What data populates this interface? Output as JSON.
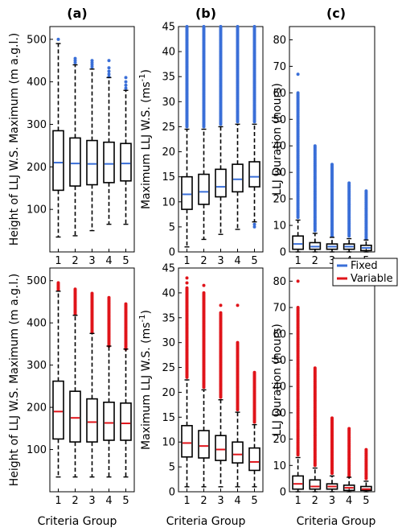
{
  "figure": {
    "xlabel": "Criteria Group",
    "panel_titles": [
      "(a)",
      "(b)",
      "(c)"
    ],
    "legend": [
      {
        "label": "Fixed",
        "color": "#3a6fd8"
      },
      {
        "label": "Variable",
        "color": "#e0141a"
      }
    ]
  },
  "colors": {
    "fixed": "#3a6fd8",
    "variable": "#e0141a",
    "box": "#000000"
  },
  "chart_data": [
    {
      "type": "boxplot",
      "panel": "a-top",
      "series": "Fixed",
      "ylabel": "Height of LLJ W.S. Maximum (m a.g.l.)",
      "xlabel": "",
      "categories": [
        "1",
        "2",
        "3",
        "4",
        "5"
      ],
      "ylim": [
        0,
        530
      ],
      "yticks": [
        100,
        200,
        300,
        400,
        500
      ],
      "boxes": [
        {
          "q1": 145,
          "median": 210,
          "q3": 285,
          "whislo": 35,
          "whishi": 490,
          "outliers": [
            500
          ]
        },
        {
          "q1": 155,
          "median": 208,
          "q3": 268,
          "whislo": 38,
          "whishi": 440,
          "outliers": [
            445,
            450,
            455
          ]
        },
        {
          "q1": 158,
          "median": 207,
          "q3": 262,
          "whislo": 50,
          "whishi": 430,
          "outliers": [
            435,
            440,
            445,
            450
          ]
        },
        {
          "q1": 163,
          "median": 207,
          "q3": 258,
          "whislo": 65,
          "whishi": 410,
          "outliers": [
            412,
            418,
            425,
            433,
            450
          ]
        },
        {
          "q1": 167,
          "median": 208,
          "q3": 255,
          "whislo": 65,
          "whishi": 380,
          "outliers": [
            385,
            392,
            400,
            410
          ]
        }
      ]
    },
    {
      "type": "boxplot",
      "panel": "b-top",
      "series": "Fixed",
      "ylabel": "Maximum LLJ W.S. (ms-1)",
      "xlabel": "",
      "categories": [
        "1",
        "2",
        "3",
        "4",
        "5"
      ],
      "ylim": [
        0,
        45
      ],
      "yticks": [
        0,
        5,
        10,
        15,
        20,
        25,
        30,
        35,
        40,
        45
      ],
      "boxes": [
        {
          "q1": 8.5,
          "median": 11.5,
          "q3": 15,
          "whislo": 1,
          "whishi": 24.5,
          "outlier_range": [
            25,
            45
          ]
        },
        {
          "q1": 9.5,
          "median": 12,
          "q3": 15.5,
          "whislo": 2.5,
          "whishi": 24.5,
          "outlier_range": [
            25,
            45
          ]
        },
        {
          "q1": 11,
          "median": 13,
          "q3": 16.5,
          "whislo": 3.5,
          "whishi": 25,
          "outlier_range": [
            25.5,
            45
          ]
        },
        {
          "q1": 12,
          "median": 14.5,
          "q3": 17.5,
          "whislo": 4.5,
          "whishi": 25.5,
          "outlier_range": [
            26,
            45
          ]
        },
        {
          "q1": 13,
          "median": 15,
          "q3": 18,
          "whislo": 6,
          "whishi": 25.5,
          "outlier_range": [
            26,
            45
          ],
          "low_outliers": [
            5.5,
            5
          ]
        }
      ]
    },
    {
      "type": "boxplot",
      "panel": "c-top",
      "series": "Fixed",
      "ylabel": "LLJ Duration (hours)",
      "xlabel": "",
      "categories": [
        "1",
        "2",
        "3",
        "4",
        "5"
      ],
      "ylim": [
        0,
        85
      ],
      "yticks": [
        0,
        10,
        20,
        30,
        40,
        50,
        60,
        70,
        80
      ],
      "boxes": [
        {
          "q1": 1,
          "median": 3,
          "q3": 6,
          "whislo": 0,
          "whishi": 12,
          "outlier_range": [
            13,
            60
          ],
          "extra_outliers": [
            67
          ]
        },
        {
          "q1": 1,
          "median": 2,
          "q3": 3.5,
          "whislo": 0,
          "whishi": 7,
          "outlier_range": [
            8,
            40
          ]
        },
        {
          "q1": 1,
          "median": 2,
          "q3": 3,
          "whislo": 0,
          "whishi": 5.5,
          "outlier_range": [
            6,
            33
          ]
        },
        {
          "q1": 1,
          "median": 2,
          "q3": 3,
          "whislo": 0,
          "whishi": 5,
          "outlier_range": [
            6,
            26
          ]
        },
        {
          "q1": 0.5,
          "median": 1.5,
          "q3": 2.5,
          "whislo": 0,
          "whishi": 4.5,
          "outlier_range": [
            5,
            23
          ]
        }
      ]
    },
    {
      "type": "boxplot",
      "panel": "a-bottom",
      "series": "Variable",
      "ylabel": "Height of LLJ W.S. Maximum (m a.g.l.)",
      "xlabel": "Criteria Group",
      "categories": [
        "1",
        "2",
        "3",
        "4",
        "5"
      ],
      "ylim": [
        0,
        530
      ],
      "yticks": [
        100,
        200,
        300,
        400,
        500
      ],
      "boxes": [
        {
          "q1": 125,
          "median": 190,
          "q3": 262,
          "whislo": 35,
          "whishi": 475,
          "outlier_range": [
            478,
            495
          ]
        },
        {
          "q1": 118,
          "median": 175,
          "q3": 238,
          "whislo": 35,
          "whishi": 418,
          "outlier_range": [
            420,
            480
          ]
        },
        {
          "q1": 118,
          "median": 165,
          "q3": 220,
          "whislo": 35,
          "whishi": 375,
          "outlier_range": [
            378,
            470
          ]
        },
        {
          "q1": 122,
          "median": 163,
          "q3": 212,
          "whislo": 35,
          "whishi": 345,
          "outlier_range": [
            345,
            460
          ]
        },
        {
          "q1": 122,
          "median": 162,
          "q3": 210,
          "whislo": 35,
          "whishi": 338,
          "outlier_range": [
            338,
            445
          ]
        }
      ]
    },
    {
      "type": "boxplot",
      "panel": "b-bottom",
      "series": "Variable",
      "ylabel": "Maximum LLJ W.S. (ms-1)",
      "xlabel": "Criteria Group",
      "categories": [
        "1",
        "2",
        "3",
        "4",
        "5"
      ],
      "ylim": [
        0,
        45
      ],
      "yticks": [
        0,
        5,
        10,
        15,
        20,
        25,
        30,
        35,
        40,
        45
      ],
      "boxes": [
        {
          "q1": 7,
          "median": 9.8,
          "q3": 13.3,
          "whislo": 1,
          "whishi": 22.5,
          "outlier_range": [
            23,
            41
          ],
          "extra_outliers": [
            42,
            43
          ]
        },
        {
          "q1": 6.8,
          "median": 9.2,
          "q3": 12.3,
          "whislo": 1,
          "whishi": 20.5,
          "outlier_range": [
            21,
            40
          ],
          "extra_outliers": [
            41.5
          ]
        },
        {
          "q1": 6.3,
          "median": 8.5,
          "q3": 11.3,
          "whislo": 1,
          "whishi": 18.5,
          "outlier_range": [
            19,
            36
          ],
          "extra_outliers": [
            37.5
          ]
        },
        {
          "q1": 5.8,
          "median": 7.5,
          "q3": 10,
          "whislo": 1,
          "whishi": 16,
          "outlier_range": [
            16.5,
            30
          ],
          "extra_outliers": [
            37.5
          ]
        },
        {
          "q1": 4.3,
          "median": 6,
          "q3": 8.8,
          "whislo": 1,
          "whishi": 13.5,
          "outlier_range": [
            14,
            24
          ]
        }
      ]
    },
    {
      "type": "boxplot",
      "panel": "c-bottom",
      "series": "Variable",
      "ylabel": "LLJ Duration (hours)",
      "xlabel": "Criteria Group",
      "categories": [
        "1",
        "2",
        "3",
        "4",
        "5"
      ],
      "ylim": [
        0,
        85
      ],
      "yticks": [
        0,
        10,
        20,
        30,
        40,
        50,
        60,
        70,
        80
      ],
      "boxes": [
        {
          "q1": 1,
          "median": 3,
          "q3": 6,
          "whislo": 0,
          "whishi": 13,
          "outlier_range": [
            14,
            70
          ],
          "extra_outliers": [
            80
          ]
        },
        {
          "q1": 1,
          "median": 2,
          "q3": 4.5,
          "whislo": 0,
          "whishi": 9,
          "outlier_range": [
            10,
            47
          ]
        },
        {
          "q1": 1,
          "median": 2,
          "q3": 3,
          "whislo": 0,
          "whishi": 6,
          "outlier_range": [
            7,
            28
          ]
        },
        {
          "q1": 0.5,
          "median": 1.5,
          "q3": 2.5,
          "whislo": 0,
          "whishi": 5.5,
          "outlier_range": [
            6,
            24
          ]
        },
        {
          "q1": 0.5,
          "median": 1,
          "q3": 2,
          "whislo": 0,
          "whishi": 4,
          "outlier_range": [
            5,
            16
          ]
        }
      ]
    }
  ]
}
